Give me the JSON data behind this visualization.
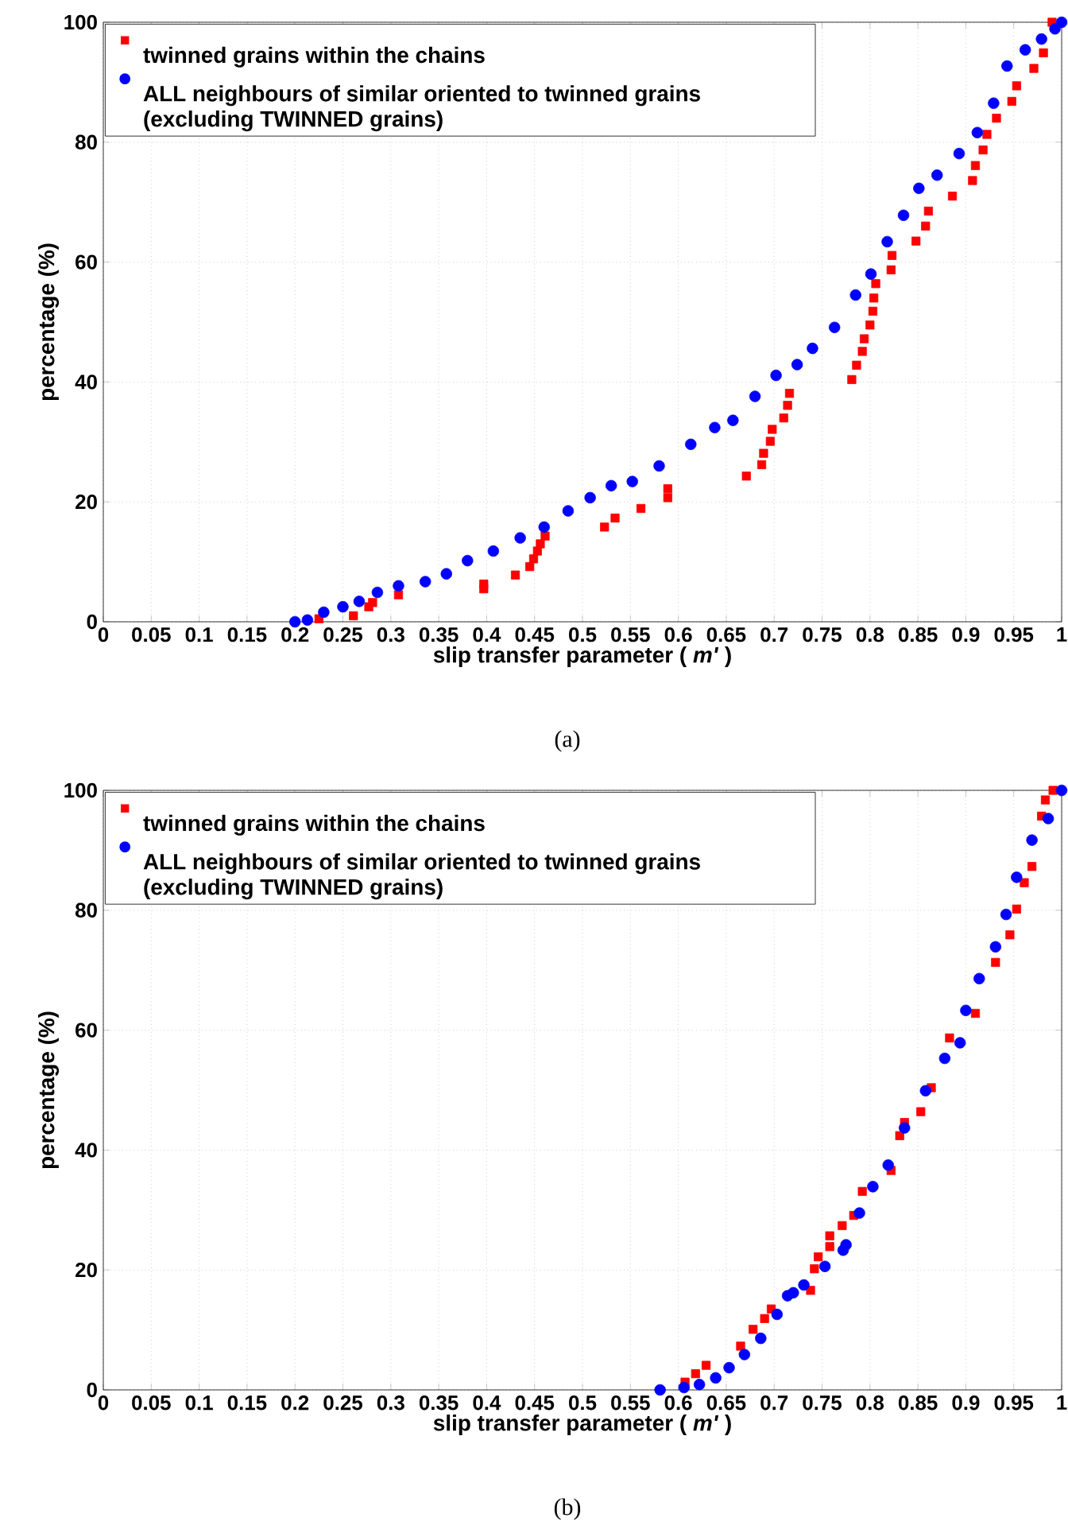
{
  "chart_data": [
    {
      "type": "scatter",
      "xlabel": "slip transfer parameter ( *m'* )",
      "ylabel": "percentage (%)",
      "annotations": [
        "(a)"
      ],
      "xlim": [
        0,
        1
      ],
      "ylim": [
        0,
        100
      ],
      "xticks": [
        0,
        0.05,
        0.1,
        0.15,
        0.2,
        0.25,
        0.3,
        0.35,
        0.4,
        0.45,
        0.5,
        0.55,
        0.6,
        0.65,
        0.7,
        0.75,
        0.8,
        0.85,
        0.9,
        0.95,
        1
      ],
      "yticks": [
        0,
        20,
        40,
        60,
        80,
        100
      ],
      "grid": true,
      "legend": "top left",
      "series": [
        {
          "name": "twinned grains within the chains",
          "color": "#ff0000",
          "marker": "square",
          "x": [
            0.225,
            0.261,
            0.277,
            0.281,
            0.308,
            0.397,
            0.397,
            0.43,
            0.445,
            0.449,
            0.453,
            0.456,
            0.461,
            0.523,
            0.534,
            0.561,
            0.589,
            0.589,
            0.671,
            0.687,
            0.689,
            0.696,
            0.698,
            0.71,
            0.714,
            0.716,
            0.781,
            0.786,
            0.792,
            0.794,
            0.8,
            0.803,
            0.804,
            0.806,
            0.822,
            0.823,
            0.848,
            0.858,
            0.861,
            0.886,
            0.907,
            0.91,
            0.918,
            0.922,
            0.932,
            0.948,
            0.953,
            0.971,
            0.981,
            0.99
          ],
          "values": [
            0.5,
            1.0,
            2.5,
            3.2,
            4.5,
            5.5,
            6.3,
            7.8,
            9.2,
            10.5,
            11.8,
            13,
            14.3,
            15.8,
            17.3,
            18.9,
            20.7,
            22.2,
            24.3,
            26.2,
            28.1,
            30.1,
            32.1,
            34.0,
            36.1,
            38.1,
            40.4,
            42.8,
            45.1,
            47.2,
            49.5,
            51.8,
            54.0,
            56.4,
            58.7,
            61.1,
            63.5,
            66.0,
            68.5,
            71.0,
            73.6,
            76.1,
            78.7,
            81.3,
            84.0,
            86.8,
            89.4,
            92.3,
            94.9,
            100
          ]
        },
        {
          "name": "ALL neighbours of similar oriented to twinned grains (excluding TWINNED grains)",
          "color": "#0000ff",
          "marker": "circle",
          "x": [
            0.2,
            0.213,
            0.23,
            0.25,
            0.267,
            0.286,
            0.308,
            0.336,
            0.358,
            0.38,
            0.407,
            0.435,
            0.46,
            0.485,
            0.508,
            0.53,
            0.552,
            0.58,
            0.613,
            0.638,
            0.657,
            0.68,
            0.702,
            0.724,
            0.74,
            0.763,
            0.785,
            0.801,
            0.818,
            0.835,
            0.851,
            0.87,
            0.893,
            0.912,
            0.929,
            0.943,
            0.962,
            0.979,
            0.993,
            1.0
          ],
          "values": [
            0,
            0.3,
            1.6,
            2.5,
            3.4,
            4.9,
            6.0,
            6.7,
            8.0,
            10.2,
            11.8,
            14.0,
            15.8,
            18.5,
            20.7,
            22.7,
            23.4,
            26.0,
            29.6,
            32.4,
            33.6,
            37.6,
            41.1,
            42.9,
            45.6,
            49.1,
            54.5,
            58.0,
            63.4,
            67.8,
            72.3,
            74.5,
            78.1,
            81.6,
            86.5,
            92.7,
            95.4,
            97.2,
            98.9,
            100
          ]
        }
      ]
    },
    {
      "type": "scatter",
      "xlabel": "slip transfer parameter ( *m'* )",
      "ylabel": "percentage (%)",
      "annotations": [
        "(b)"
      ],
      "xlim": [
        0,
        1
      ],
      "ylim": [
        0,
        100
      ],
      "xticks": [
        0,
        0.05,
        0.1,
        0.15,
        0.2,
        0.25,
        0.3,
        0.35,
        0.4,
        0.45,
        0.5,
        0.55,
        0.6,
        0.65,
        0.7,
        0.75,
        0.8,
        0.85,
        0.9,
        0.95,
        1
      ],
      "yticks": [
        0,
        20,
        40,
        60,
        80,
        100
      ],
      "grid": true,
      "legend": "top left",
      "series": [
        {
          "name": "twinned grains within the chains",
          "color": "#ff0000",
          "marker": "square",
          "x": [
            0.607,
            0.618,
            0.629,
            0.665,
            0.678,
            0.69,
            0.697,
            0.738,
            0.742,
            0.746,
            0.758,
            0.758,
            0.771,
            0.783,
            0.792,
            0.822,
            0.831,
            0.836,
            0.853,
            0.864,
            0.883,
            0.91,
            0.931,
            0.946,
            0.953,
            0.961,
            0.969,
            0.979,
            0.983,
            0.991
          ],
          "values": [
            1.3,
            2.7,
            4.1,
            7.3,
            10.1,
            11.9,
            13.5,
            16.6,
            20.2,
            22.2,
            23.9,
            25.7,
            27.4,
            29.1,
            33.1,
            36.6,
            42.4,
            44.6,
            46.4,
            50.4,
            58.7,
            62.8,
            71.3,
            75.9,
            80.2,
            84.6,
            87.3,
            95.7,
            98.4,
            100
          ]
        },
        {
          "name": "ALL neighbours of similar oriented to twinned grains (excluding TWINNED grains)",
          "color": "#0000ff",
          "marker": "circle",
          "x": [
            0.581,
            0.606,
            0.622,
            0.639,
            0.653,
            0.669,
            0.686,
            0.703,
            0.714,
            0.72,
            0.731,
            0.753,
            0.772,
            0.775,
            0.789,
            0.803,
            0.819,
            0.836,
            0.858,
            0.878,
            0.894,
            0.9,
            0.914,
            0.931,
            0.942,
            0.953,
            0.969,
            0.986,
            1.0
          ],
          "values": [
            0,
            0.4,
            0.9,
            2.0,
            3.7,
            5.9,
            8.6,
            12.6,
            15.7,
            16.2,
            17.5,
            20.6,
            23.3,
            24.2,
            29.5,
            33.9,
            37.5,
            43.7,
            49.9,
            55.3,
            57.9,
            63.3,
            68.6,
            73.9,
            79.3,
            85.5,
            91.7,
            95.3,
            100
          ]
        }
      ]
    }
  ]
}
